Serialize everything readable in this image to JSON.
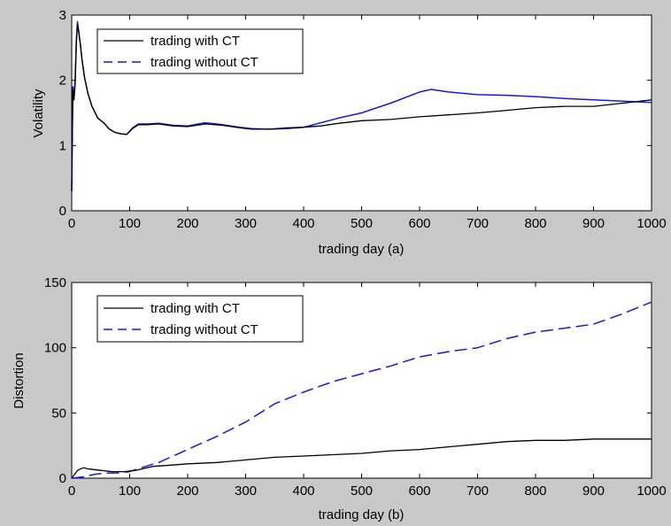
{
  "chart_data": [
    {
      "type": "line",
      "title": "",
      "xlabel": "trading day (a)",
      "ylabel": "Volatility",
      "xlim": [
        0,
        1000
      ],
      "ylim": [
        0,
        3
      ],
      "xticks": [
        0,
        100,
        200,
        300,
        400,
        500,
        600,
        700,
        800,
        900,
        1000
      ],
      "yticks": [
        0,
        1,
        2,
        3
      ],
      "grid": false,
      "legend_position": "top-left",
      "series": [
        {
          "name": "trading with CT",
          "color": "#000000",
          "dash": "solid",
          "x": [
            0,
            2,
            4,
            6,
            8,
            10,
            12,
            15,
            18,
            22,
            28,
            35,
            45,
            55,
            65,
            75,
            85,
            95,
            105,
            115,
            130,
            150,
            175,
            200,
            230,
            260,
            290,
            310,
            340,
            370,
            400,
            430,
            460,
            500,
            550,
            600,
            650,
            700,
            750,
            800,
            850,
            900,
            950,
            1000
          ],
          "y": [
            0.3,
            1.85,
            1.7,
            1.95,
            2.55,
            2.85,
            2.75,
            2.55,
            2.3,
            2.05,
            1.8,
            1.6,
            1.42,
            1.35,
            1.25,
            1.2,
            1.18,
            1.17,
            1.26,
            1.32,
            1.32,
            1.33,
            1.3,
            1.29,
            1.33,
            1.31,
            1.27,
            1.25,
            1.25,
            1.27,
            1.28,
            1.3,
            1.34,
            1.38,
            1.4,
            1.44,
            1.47,
            1.5,
            1.54,
            1.58,
            1.6,
            1.6,
            1.65,
            1.7
          ]
        },
        {
          "name": "trading without CT",
          "color": "#1515ee",
          "dash": "dashed",
          "x": [
            0,
            2,
            4,
            6,
            8,
            10,
            12,
            15,
            18,
            22,
            28,
            35,
            45,
            55,
            65,
            75,
            85,
            95,
            105,
            115,
            130,
            150,
            175,
            200,
            230,
            260,
            290,
            310,
            340,
            370,
            400,
            430,
            460,
            500,
            550,
            600,
            620,
            650,
            700,
            750,
            800,
            850,
            900,
            950,
            1000
          ],
          "y": [
            0.3,
            1.9,
            1.75,
            2.0,
            2.6,
            2.9,
            2.75,
            2.55,
            2.3,
            2.05,
            1.8,
            1.6,
            1.42,
            1.35,
            1.25,
            1.2,
            1.18,
            1.17,
            1.27,
            1.33,
            1.33,
            1.34,
            1.31,
            1.3,
            1.35,
            1.32,
            1.28,
            1.26,
            1.25,
            1.26,
            1.28,
            1.35,
            1.42,
            1.5,
            1.65,
            1.82,
            1.86,
            1.82,
            1.78,
            1.77,
            1.75,
            1.72,
            1.7,
            1.68,
            1.66
          ]
        }
      ]
    },
    {
      "type": "line",
      "title": "",
      "xlabel": "trading day (b)",
      "ylabel": "Distortion",
      "xlim": [
        0,
        1000
      ],
      "ylim": [
        0,
        150
      ],
      "xticks": [
        0,
        100,
        200,
        300,
        400,
        500,
        600,
        700,
        800,
        900,
        1000
      ],
      "yticks": [
        0,
        50,
        100,
        150
      ],
      "grid": false,
      "legend_position": "top-left",
      "series": [
        {
          "name": "trading with CT",
          "color": "#000000",
          "dash": "solid",
          "x": [
            0,
            10,
            20,
            30,
            50,
            70,
            90,
            110,
            140,
            170,
            200,
            250,
            300,
            350,
            400,
            450,
            500,
            550,
            600,
            650,
            700,
            750,
            800,
            850,
            900,
            950,
            1000
          ],
          "y": [
            0,
            6,
            8,
            7,
            6,
            5,
            5,
            6,
            9,
            10,
            11,
            12,
            14,
            16,
            17,
            18,
            19,
            21,
            22,
            24,
            26,
            28,
            29,
            29,
            30,
            30,
            30
          ]
        },
        {
          "name": "trading without CT",
          "color": "#1515ee",
          "dash": "dashed",
          "x": [
            0,
            20,
            40,
            60,
            80,
            100,
            120,
            150,
            200,
            250,
            300,
            350,
            400,
            450,
            500,
            550,
            600,
            650,
            700,
            750,
            800,
            850,
            900,
            950,
            1000
          ],
          "y": [
            0,
            1,
            3,
            4,
            4,
            5,
            8,
            12,
            22,
            32,
            43,
            57,
            66,
            74,
            80,
            86,
            93,
            97,
            100,
            107,
            112,
            115,
            118,
            126,
            135
          ]
        }
      ]
    }
  ]
}
